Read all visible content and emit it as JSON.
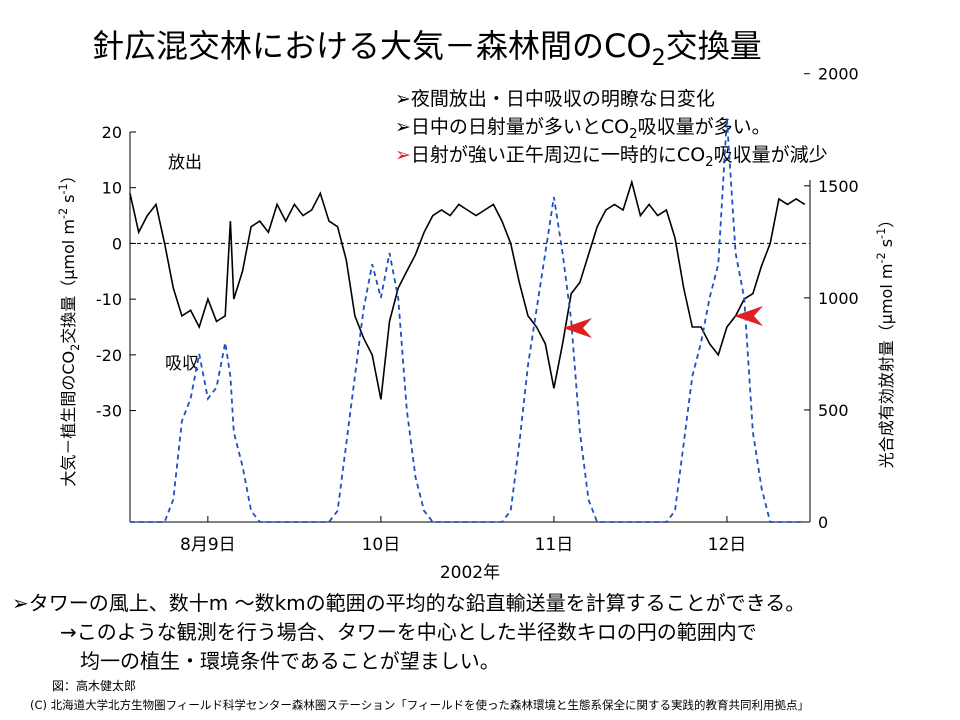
{
  "chart_data": {
    "type": "line",
    "title": [
      "針広混交林における大気－森林間のCO",
      "2",
      "交換量"
    ],
    "bullets": [
      [
        "➢夜間放出・日中吸収の明瞭な日変化"
      ],
      [
        "➢日中の日射量が多いとCO",
        "2",
        "吸収量が多い。"
      ],
      [
        "➢",
        "日射が強い正午周辺に一時的にCO",
        "2",
        "吸収量が減少"
      ]
    ],
    "annotations": [
      "放出",
      "吸収"
    ],
    "ylabel": [
      "大気－植生間のCO",
      "2",
      "交換量（μmol m",
      "-2",
      " s",
      "-1",
      "）"
    ],
    "y2label": [
      "光合成有効放射量（μmol m",
      "-2",
      " s",
      "-1",
      "）"
    ],
    "xlabel": "2002年",
    "x": [
      8.55,
      8.6,
      8.65,
      8.7,
      8.75,
      8.8,
      8.85,
      8.9,
      8.95,
      9.0,
      9.05,
      9.1,
      9.13,
      9.15,
      9.2,
      9.25,
      9.3,
      9.35,
      9.4,
      9.45,
      9.5,
      9.55,
      9.6,
      9.65,
      9.7,
      9.75,
      9.8,
      9.85,
      9.9,
      9.95,
      10.0,
      10.05,
      10.1,
      10.15,
      10.2,
      10.25,
      10.3,
      10.35,
      10.4,
      10.45,
      10.5,
      10.55,
      10.6,
      10.65,
      10.7,
      10.75,
      10.8,
      10.85,
      10.9,
      10.95,
      11.0,
      11.05,
      11.1,
      11.15,
      11.2,
      11.25,
      11.3,
      11.35,
      11.4,
      11.45,
      11.5,
      11.55,
      11.6,
      11.65,
      11.7,
      11.75,
      11.8,
      11.85,
      11.9,
      11.95,
      12.0,
      12.05,
      12.1,
      12.15,
      12.2,
      12.25,
      12.3,
      12.35,
      12.4,
      12.45
    ],
    "series": [
      {
        "name": "CO2交換量",
        "color": "#000000",
        "values": [
          9,
          2,
          5,
          7,
          0,
          -8,
          -13,
          -12,
          -15,
          -10,
          -14,
          -13,
          4,
          -10,
          -5,
          3,
          4,
          2,
          7,
          4,
          7,
          5,
          6,
          9,
          4,
          3,
          -3,
          -13,
          -17,
          -20,
          -28,
          -14,
          -8,
          -5,
          -2,
          2,
          5,
          6,
          5,
          7,
          6,
          5,
          6,
          7,
          4,
          0,
          -7,
          -13,
          -15,
          -18,
          -26,
          -18,
          -9,
          -7,
          -2,
          3,
          6,
          7,
          6,
          11,
          5,
          7,
          5,
          6,
          1,
          -8,
          -15,
          -15,
          -18,
          -20,
          -15,
          -13,
          -10,
          -9,
          -4,
          0,
          8,
          7,
          8,
          7
        ]
      },
      {
        "name": "光合成有効放射量",
        "color": "#1f4fc0",
        "axis": "y2",
        "values": [
          0,
          0,
          0,
          0,
          0,
          100,
          450,
          550,
          750,
          550,
          600,
          800,
          650,
          400,
          250,
          50,
          0,
          0,
          0,
          0,
          0,
          0,
          0,
          0,
          0,
          50,
          350,
          650,
          950,
          1150,
          1000,
          1200,
          1000,
          500,
          200,
          50,
          0,
          0,
          0,
          0,
          0,
          0,
          0,
          0,
          0,
          50,
          350,
          700,
          950,
          1200,
          1450,
          1200,
          900,
          400,
          100,
          0,
          0,
          0,
          0,
          0,
          0,
          0,
          0,
          0,
          50,
          350,
          650,
          800,
          1000,
          1150,
          1800,
          1200,
          1000,
          400,
          150,
          0,
          0,
          0,
          0,
          0
        ]
      }
    ],
    "xlim": [
      8.55,
      12.48
    ],
    "xticks": [
      {
        "value": 9,
        "label": "8月9日"
      },
      {
        "value": 10,
        "label": "10日"
      },
      {
        "value": 11,
        "label": "11日"
      },
      {
        "value": 12,
        "label": "12日"
      }
    ],
    "ylim": [
      -50,
      20
    ],
    "yticks": [
      -30,
      -20,
      -10,
      0,
      10,
      20
    ],
    "y2lim": [
      0,
      1740
    ],
    "y2ticks": [
      0,
      500,
      1000,
      1500,
      2000
    ]
  },
  "notes": [
    "➢タワーの風上、数十m ～数kmの範囲の平均的な鉛直輸送量を計算することができる。",
    "→このような観測を行う場合、タワーを中心とした半径数キロの円の範囲内で",
    "均一の植生・環境条件であることが望ましい。"
  ],
  "credit": "図：高木健太郎",
  "copyright": "(C) 北海道大学北方生物圏フィールド科学センター森林圏ステーション「フィールドを使った森林環境と生態系保全に関する実践的教育共同利用拠点」"
}
